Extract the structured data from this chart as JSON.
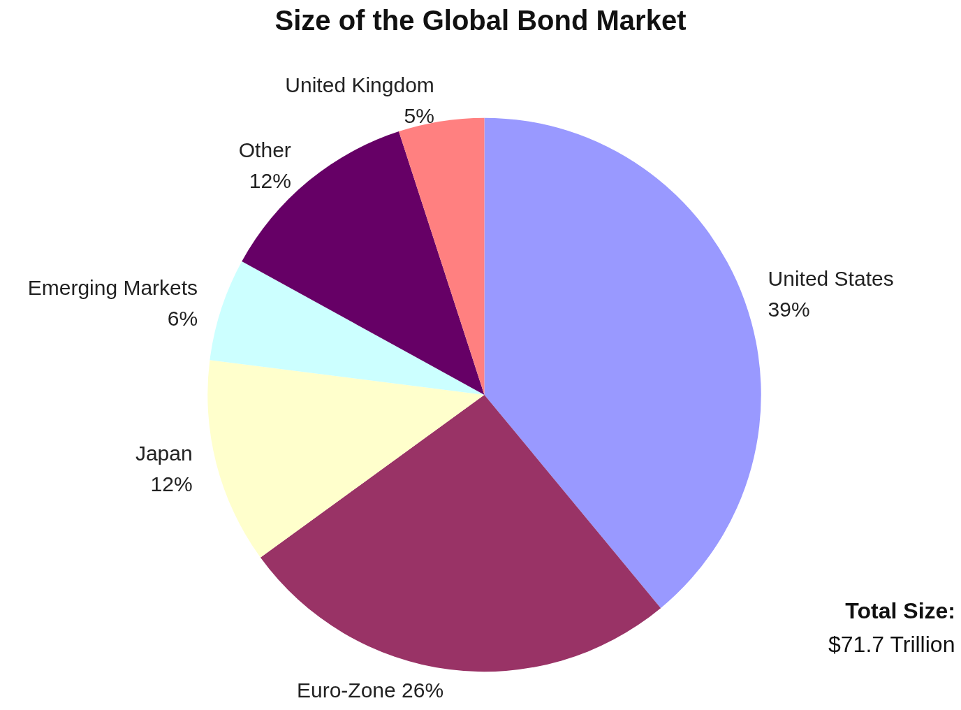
{
  "chart_data": {
    "type": "pie",
    "title": "Size of the Global Bond Market",
    "categories": [
      "United States",
      "Euro-Zone",
      "Japan",
      "Emerging Markets",
      "Other",
      "United Kingdom"
    ],
    "values": [
      39,
      26,
      12,
      6,
      12,
      5
    ],
    "colors": [
      "#9999ff",
      "#993366",
      "#ffffcc",
      "#ccffff",
      "#660066",
      "#ff8080"
    ],
    "value_labels": [
      "39%",
      "26%",
      "12%",
      "6%",
      "12%",
      "5%"
    ],
    "legend": false,
    "annotations": [
      "Total Size:",
      "$71.7 Trillion"
    ]
  }
}
